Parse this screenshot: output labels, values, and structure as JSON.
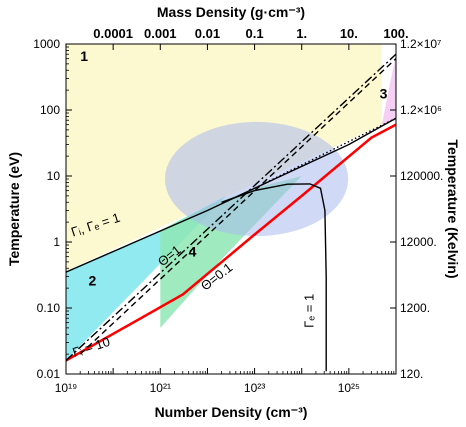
{
  "chart_data": {
    "type": "line",
    "log_x": true,
    "log_y": true,
    "xlim": [
      1e+19,
      1e+26
    ],
    "ylim": [
      0.01,
      1000
    ],
    "xlabel": "Number Density (cm⁻³)",
    "ylabel": "Temperature (eV)",
    "top_axis_label": "Mass Density (g·cm⁻³)",
    "right_axis_label": "Temperature (Kelvin)",
    "x_ticks": [
      {
        "value": 1e+19,
        "label": "10¹⁹"
      },
      {
        "value": 1e+21,
        "label": "10²¹"
      },
      {
        "value": 1e+23,
        "label": "10²³"
      },
      {
        "value": 1e+25,
        "label": "10²⁵"
      }
    ],
    "y_ticks": [
      {
        "value": 0.01,
        "label": "0.01"
      },
      {
        "value": 0.1,
        "label": "0.10"
      },
      {
        "value": 1,
        "label": "1"
      },
      {
        "value": 10,
        "label": "10"
      },
      {
        "value": 100,
        "label": "100"
      },
      {
        "value": 1000,
        "label": "1000"
      }
    ],
    "top_ticks": [
      {
        "x": 1e+20,
        "label": "0.0001"
      },
      {
        "x": 1e+21,
        "label": "0.001"
      },
      {
        "x": 1e+22,
        "label": "0.01"
      },
      {
        "x": 1e+23,
        "label": "0.1"
      },
      {
        "x": 1e+24,
        "label": "1."
      },
      {
        "x": 1e+25,
        "label": "10."
      },
      {
        "x": 1e+26,
        "label": "100."
      }
    ],
    "right_ticks": [
      {
        "y": 1000,
        "label": "1.2×10⁷"
      },
      {
        "y": 100,
        "label": "1.2×10⁶"
      },
      {
        "y": 10,
        "label": "120000."
      },
      {
        "y": 1,
        "label": "12000."
      },
      {
        "y": 0.1,
        "label": "1200."
      },
      {
        "y": 0.01,
        "label": "120."
      }
    ],
    "regions": [
      {
        "label": "1",
        "color": "#fbf7c8",
        "x": [
          1e+19,
          5e+25,
          5e+25,
          1e+19
        ],
        "y": [
          1000,
          1000,
          60,
          0.36
        ]
      },
      {
        "label": "2",
        "color": "#7fe6ee",
        "x": [
          1e+19,
          1e+21,
          2.5e+22,
          1e+19
        ],
        "y": [
          0.36,
          1.5,
          5,
          0.016
        ]
      },
      {
        "label": "3",
        "color": "#f3c8f2",
        "x": [
          5e+25,
          1e+26,
          1e+26
        ],
        "y": [
          60,
          700,
          70
        ]
      },
      {
        "label": "4",
        "color": "#8ee6b4",
        "x": [
          1e+21,
          1e+22,
          1e+23,
          1e+24,
          2e+22,
          1e+21
        ],
        "y": [
          1.5,
          3.5,
          6.5,
          10,
          0.55,
          0.05
        ]
      }
    ],
    "ellipse": {
      "center_x": 1.1e+23,
      "center_y": 9,
      "x_range": [
        1.3e+21,
        1e+25
      ],
      "y_range": [
        1.3,
        70
      ],
      "color": "#a9b9ef"
    },
    "series": [
      {
        "name": "Γᵢ, Γₑ = 1",
        "style": "solid",
        "color": "#000000",
        "x": [
          1e+19,
          1e+22,
          1e+23,
          1e+25,
          1e+26
        ],
        "y": [
          0.35,
          3.0,
          6.5,
          30,
          75
        ]
      },
      {
        "name": "Γᵢ = 10",
        "style": "solid",
        "color": "#ff0000",
        "x": [
          1e+19,
          3e+21,
          1e+23,
          1e+24,
          3e+25,
          1e+26
        ],
        "y": [
          0.016,
          0.16,
          1.3,
          5,
          38,
          60
        ]
      },
      {
        "name": "Θ=1",
        "style": "dash-dot",
        "color": "#000000",
        "x": [
          1e+19,
          1e+26
        ],
        "y": [
          0.016,
          700
        ]
      },
      {
        "name": "Θ=0.1",
        "style": "dashed",
        "color": "#000000",
        "x": [
          2e+19,
          1e+26
        ],
        "y": [
          0.02,
          600
        ]
      },
      {
        "name": "Γₑ = 1",
        "style": "solid",
        "color": "#000000",
        "x": [
          2e+22,
          1e+23,
          5e+23,
          1.5e+24,
          2.5e+24,
          3.1e+24,
          3.3e+24,
          3.3e+24
        ],
        "y": [
          4.0,
          6.0,
          7.5,
          7.6,
          6.5,
          3.0,
          0.3,
          0.011
        ]
      },
      {
        "name": "",
        "style": "dotted",
        "color": "#000000",
        "x": [
          1e+23,
          1e+26
        ],
        "y": [
          6.5,
          75
        ]
      }
    ],
    "annotations": [
      {
        "text": "1",
        "x": 2e+19,
        "y": 550,
        "kind": "region"
      },
      {
        "text": "2",
        "x": 3e+19,
        "y": 0.22,
        "kind": "region"
      },
      {
        "text": "3",
        "x": 4.5e+25,
        "y": 150,
        "kind": "region"
      },
      {
        "text": "4",
        "x": 4e+21,
        "y": 0.6,
        "kind": "region"
      },
      {
        "text": "Γᵢ, Γₑ = 1",
        "x": 1.4e+19,
        "y": 1.2,
        "kind": "curve",
        "rotate": -18
      },
      {
        "text": "Θ=1",
        "x": 1.1e+21,
        "y": 0.42,
        "kind": "curve",
        "rotate": -38,
        "color": "#006000"
      },
      {
        "text": "Θ=0.1",
        "x": 9e+21,
        "y": 0.18,
        "kind": "curve",
        "rotate": -38
      },
      {
        "text": "Γᵢ = 10",
        "x": 1.5e+19,
        "y": 0.018,
        "kind": "curve",
        "rotate": -18
      },
      {
        "text": "Γₑ = 1",
        "x": 1.8e+24,
        "y": 0.05,
        "kind": "curve",
        "rotate": -90
      }
    ],
    "grid": false,
    "legend": "none"
  }
}
